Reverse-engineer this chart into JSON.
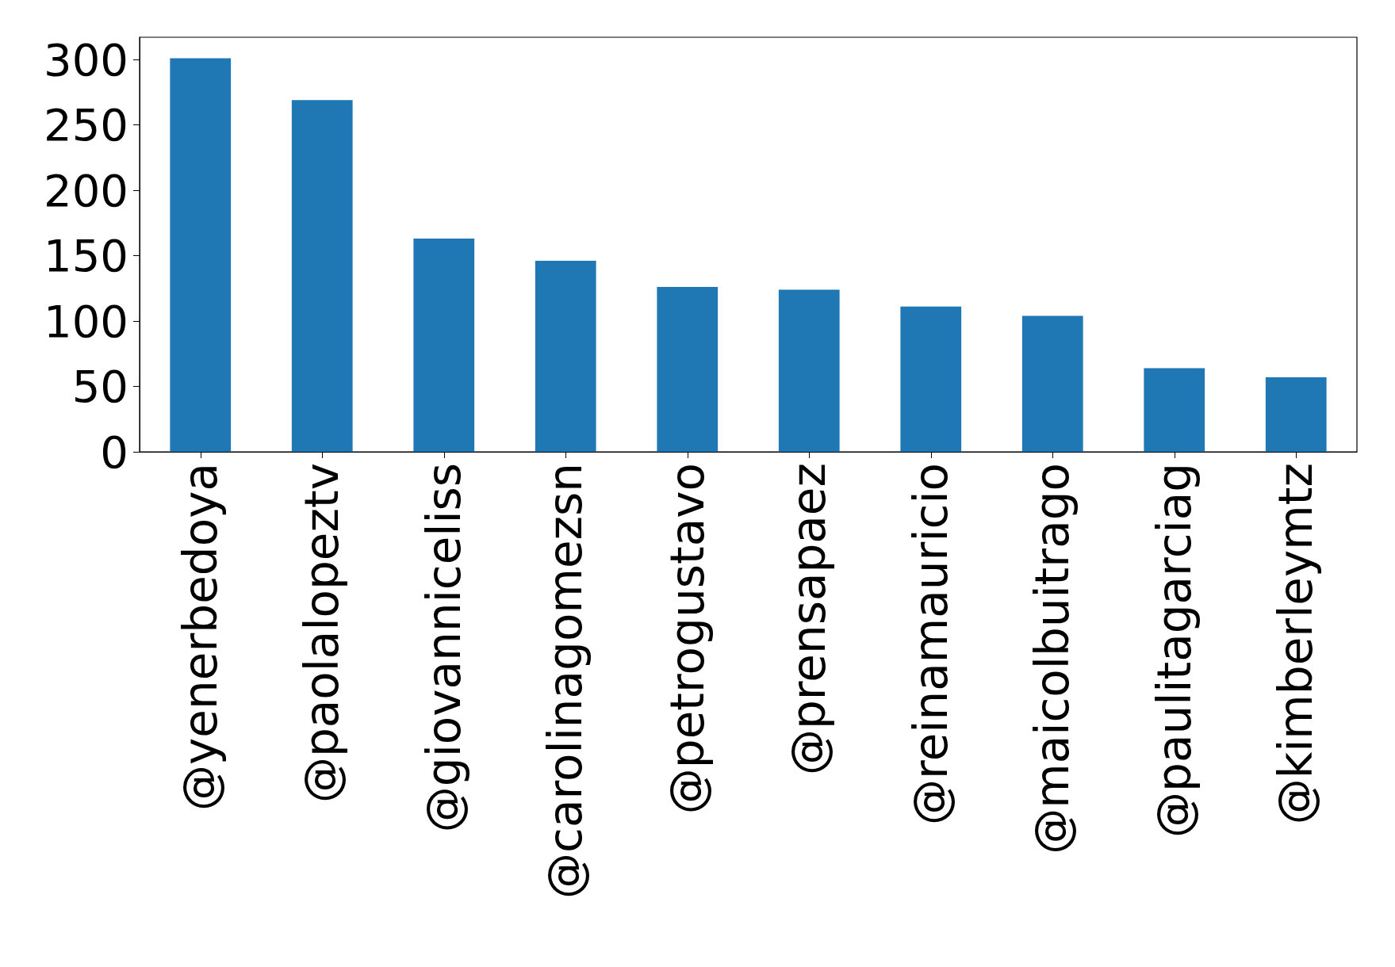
{
  "chart_data": {
    "type": "bar",
    "categories": [
      "@yenerbedoya",
      "@paolalopeztv",
      "@giovanniceliss",
      "@carolinagomezsn",
      "@petrogustavo",
      "@prensapaez",
      "@reinamauricio",
      "@maicolbuitrago",
      "@paulitagarciag",
      "@kimberleymtz"
    ],
    "values": [
      301,
      269,
      163,
      146,
      126,
      124,
      111,
      104,
      64,
      57
    ],
    "color": "#1f77b4",
    "ylim": [
      0,
      317
    ],
    "yticks": [
      0,
      50,
      100,
      150,
      200,
      250,
      300
    ],
    "grid": false
  }
}
